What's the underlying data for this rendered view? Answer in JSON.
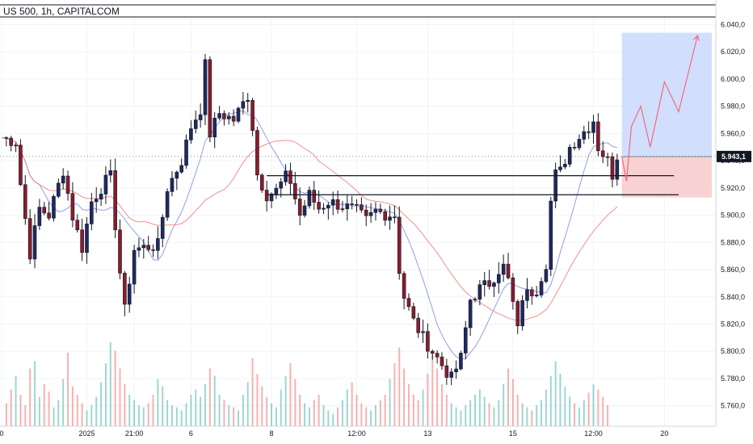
{
  "chart_data": {
    "type": "candlestick",
    "title": "US 500, 1h, CAPITALCOM",
    "ylim": [
      5745,
      6045
    ],
    "y_ticks": [
      "6.040,0",
      "6.020,0",
      "6.000,0",
      "5.980,0",
      "5.960,0",
      "5.940,0",
      "5.920,0",
      "5.900,0",
      "5.880,0",
      "5.860,0",
      "5.840,0",
      "5.820,0",
      "5.800,0",
      "5.780,0",
      "5.760,0"
    ],
    "y_tick_values": [
      6040,
      6020,
      6000,
      5980,
      5960,
      5940,
      5920,
      5900,
      5880,
      5860,
      5840,
      5820,
      5800,
      5780,
      5760
    ],
    "x_ticks": [
      "0",
      "2025",
      "21:00",
      "6",
      "8",
      "12:00",
      "13",
      "15",
      "12:00",
      "20"
    ],
    "x_tick_bars": [
      0,
      18,
      28,
      40,
      57,
      75,
      90,
      108,
      125,
      140
    ],
    "current_price_label": "5.943,1",
    "current_price": 5943.1,
    "colors": {
      "up": "#26a69a",
      "down": "#ef5350",
      "candle_body": "#131722",
      "ma_fast": "#7b8ee8",
      "ma_slow": "#ef7c7c",
      "target_zone": "#c9d9fb",
      "stop_zone": "#f7caca",
      "projection": "#f06a7e"
    },
    "gridlines": true,
    "candle_count": 128,
    "anchors": [
      [
        0,
        5957
      ],
      [
        3,
        5954
      ],
      [
        4,
        5923
      ],
      [
        6,
        5872
      ],
      [
        8,
        5905
      ],
      [
        10,
        5900
      ],
      [
        13,
        5933
      ],
      [
        15,
        5899
      ],
      [
        17,
        5876
      ],
      [
        19,
        5910
      ],
      [
        22,
        5925
      ],
      [
        23,
        5928
      ],
      [
        25,
        5858
      ],
      [
        26,
        5830
      ],
      [
        28,
        5875
      ],
      [
        33,
        5878
      ],
      [
        35,
        5920
      ],
      [
        38,
        5940
      ],
      [
        40,
        5965
      ],
      [
        42,
        5978
      ],
      [
        43,
        6010
      ],
      [
        44,
        5960
      ],
      [
        46,
        5975
      ],
      [
        49,
        5970
      ],
      [
        52,
        5988
      ],
      [
        53,
        5965
      ],
      [
        54,
        5930
      ],
      [
        56,
        5915
      ],
      [
        58,
        5918
      ],
      [
        60,
        5928
      ],
      [
        61,
        5925
      ],
      [
        63,
        5900
      ],
      [
        65,
        5915
      ],
      [
        67,
        5905
      ],
      [
        69,
        5910
      ],
      [
        72,
        5907
      ],
      [
        75,
        5903
      ],
      [
        77,
        5896
      ],
      [
        79,
        5903
      ],
      [
        81,
        5901
      ],
      [
        83,
        5900
      ],
      [
        84,
        5860
      ],
      [
        85,
        5840
      ],
      [
        87,
        5822
      ],
      [
        89,
        5810
      ],
      [
        91,
        5800
      ],
      [
        93,
        5790
      ],
      [
        95,
        5780
      ],
      [
        97,
        5795
      ],
      [
        99,
        5838
      ],
      [
        101,
        5846
      ],
      [
        103,
        5850
      ],
      [
        105,
        5860
      ],
      [
        106,
        5862
      ],
      [
        107,
        5852
      ],
      [
        108,
        5835
      ],
      [
        109,
        5815
      ],
      [
        110,
        5840
      ],
      [
        113,
        5846
      ],
      [
        115,
        5865
      ],
      [
        116,
        5910
      ],
      [
        117,
        5930
      ],
      [
        118,
        5932
      ],
      [
        120,
        5950
      ],
      [
        122,
        5958
      ],
      [
        124,
        5965
      ],
      [
        125,
        5970
      ],
      [
        126,
        5950
      ],
      [
        128,
        5940
      ],
      [
        129,
        5930
      ],
      [
        130,
        5944
      ]
    ],
    "series": [
      {
        "name": "",
        "values": []
      },
      {
        "name": "",
        "values": []
      }
    ],
    "volume": {
      "heights_pct_of_max": [
        22,
        35,
        48,
        30,
        20,
        55,
        62,
        28,
        40,
        33,
        18,
        25,
        45,
        70,
        38,
        30,
        22,
        15,
        20,
        28,
        42,
        60,
        80,
        72,
        55,
        40,
        30,
        25,
        20,
        18,
        22,
        30,
        45,
        38,
        25,
        20,
        18,
        15,
        22,
        30,
        35,
        28,
        40,
        55,
        48,
        30,
        25,
        20,
        18,
        15,
        30,
        42,
        65,
        50,
        38,
        28,
        22,
        18,
        35,
        48,
        60,
        45,
        30,
        22,
        18,
        25,
        30,
        20,
        15,
        12,
        18,
        25,
        35,
        42,
        30,
        22,
        18,
        15,
        20,
        25,
        30,
        45,
        60,
        75,
        55,
        40,
        30,
        25,
        35,
        50,
        68,
        55,
        40,
        30,
        22,
        18,
        15,
        20,
        25,
        30,
        35,
        28,
        22,
        18,
        25,
        40,
        55,
        45,
        30,
        22,
        18,
        15,
        20,
        25,
        35,
        48,
        62,
        50,
        38,
        28,
        22,
        18,
        25,
        32,
        40,
        35,
        28,
        20
      ]
    },
    "levels": [
      {
        "price": 5929,
        "from_bar": 56,
        "to_bar": 142
      },
      {
        "price": 5915,
        "from_bar": 56,
        "to_bar": 143
      }
    ],
    "position": {
      "entry": 5943,
      "target": 6034,
      "stop": 5913,
      "from_bar": 131,
      "to_bar": 150
    },
    "projection_points": [
      [
        131,
        5943
      ],
      [
        132,
        5925
      ],
      [
        133,
        5965
      ],
      [
        135,
        5980
      ],
      [
        137,
        5950
      ],
      [
        140,
        5998
      ],
      [
        143,
        5976
      ],
      [
        147,
        6032
      ]
    ]
  }
}
